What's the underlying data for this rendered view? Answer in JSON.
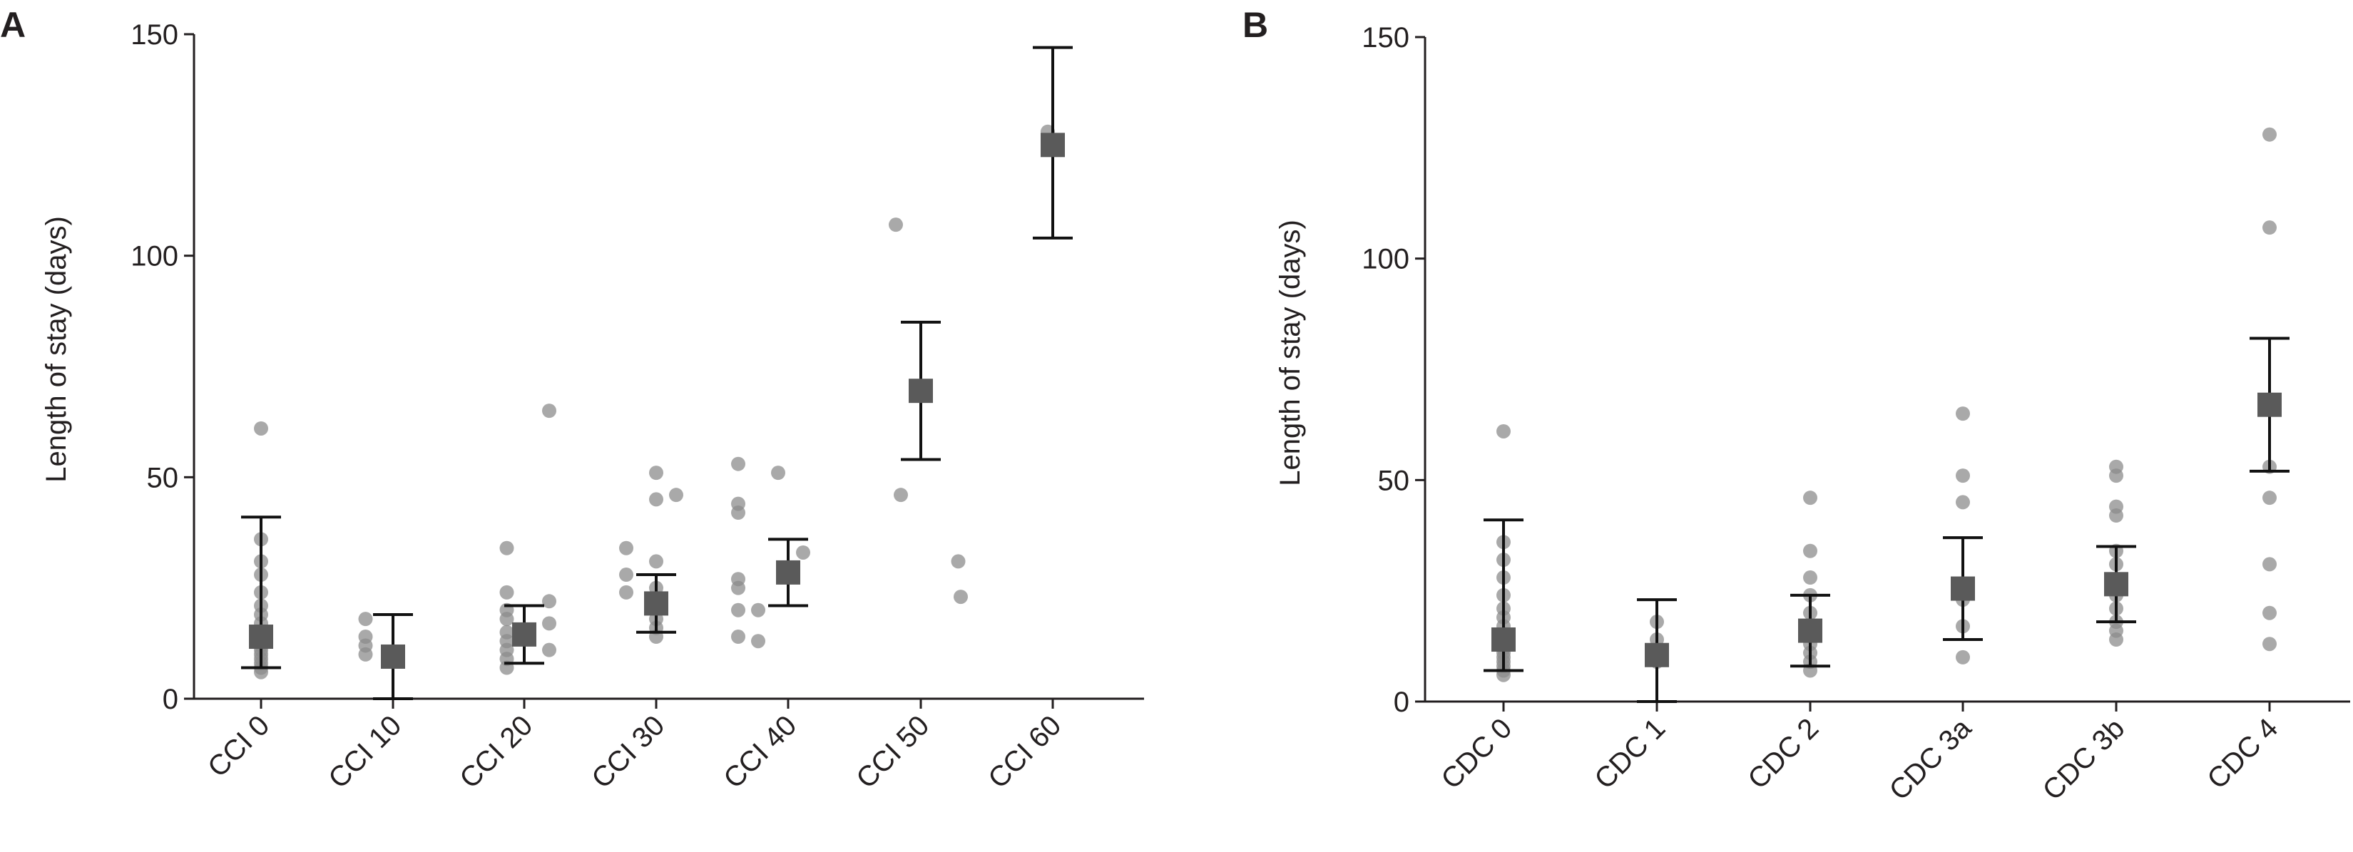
{
  "chart_data": [
    {
      "panel": "A",
      "type": "scatter",
      "title": "",
      "xlabel": "",
      "ylabel": "Length of stay (days)",
      "ylim": [
        0,
        150
      ],
      "yticks": [
        0,
        50,
        100,
        150
      ],
      "grid": false,
      "categories": [
        "CCI 0",
        "CCI 10",
        "CCI 20",
        "CCI 30",
        "CCI 40",
        "CCI 50",
        "CCI 60"
      ],
      "groups": [
        {
          "label": "CCI 0",
          "mean": 14,
          "ci": [
            7,
            41
          ],
          "points": [
            [
              0,
              61
            ],
            [
              0,
              36
            ],
            [
              0,
              31
            ],
            [
              0,
              28
            ],
            [
              0,
              24
            ],
            [
              0,
              21
            ],
            [
              0,
              19
            ],
            [
              0,
              17
            ],
            [
              0,
              15
            ],
            [
              0,
              14
            ],
            [
              0,
              13
            ],
            [
              0,
              12
            ],
            [
              0,
              11
            ],
            [
              0,
              10
            ],
            [
              0,
              9
            ],
            [
              0,
              8
            ],
            [
              0,
              7
            ],
            [
              0,
              6
            ]
          ]
        },
        {
          "label": "CCI 10",
          "mean": 9.5,
          "ci": [
            0,
            19
          ],
          "points": [
            [
              -0.55,
              18
            ],
            [
              -0.55,
              14
            ],
            [
              -0.55,
              12
            ],
            [
              -0.55,
              10
            ]
          ]
        },
        {
          "label": "CCI 20",
          "mean": 14.5,
          "ci": [
            8,
            21
          ],
          "points": [
            [
              -0.35,
              34
            ],
            [
              -0.35,
              24
            ],
            [
              -0.35,
              20
            ],
            [
              -0.35,
              18
            ],
            [
              -0.35,
              15
            ],
            [
              -0.35,
              13
            ],
            [
              -0.35,
              11
            ],
            [
              -0.35,
              9
            ],
            [
              -0.35,
              7
            ],
            [
              0.5,
              65
            ],
            [
              0.5,
              22
            ],
            [
              0.5,
              17
            ],
            [
              0.5,
              11
            ]
          ]
        },
        {
          "label": "CCI 30",
          "mean": 21.5,
          "ci": [
            15,
            28
          ],
          "points": [
            [
              -0.6,
              34
            ],
            [
              -0.6,
              28
            ],
            [
              -0.6,
              24
            ],
            [
              0,
              51
            ],
            [
              0,
              45
            ],
            [
              0,
              31
            ],
            [
              0,
              25
            ],
            [
              0,
              21
            ],
            [
              0,
              18
            ],
            [
              0,
              16
            ],
            [
              0,
              14
            ],
            [
              0.4,
              46
            ]
          ]
        },
        {
          "label": "CCI 40",
          "mean": 28.5,
          "ci": [
            21,
            36
          ],
          "points": [
            [
              -1,
              53
            ],
            [
              -1,
              44
            ],
            [
              -1,
              42
            ],
            [
              -1,
              27
            ],
            [
              -1,
              25
            ],
            [
              -1,
              20
            ],
            [
              -1,
              14
            ],
            [
              -0.6,
              20
            ],
            [
              -0.6,
              13
            ],
            [
              -0.2,
              51
            ],
            [
              0.3,
              33
            ]
          ]
        },
        {
          "label": "CCI 50",
          "mean": 69.5,
          "ci": [
            54,
            85
          ],
          "points": [
            [
              -0.5,
              107
            ],
            [
              -0.4,
              46
            ],
            [
              0.75,
              31
            ],
            [
              0.8,
              23
            ]
          ]
        },
        {
          "label": "CCI 60",
          "mean": 125,
          "ci": [
            104,
            147
          ],
          "points": [
            [
              -0.1,
              128
            ]
          ]
        }
      ]
    },
    {
      "panel": "B",
      "type": "scatter",
      "title": "",
      "xlabel": "",
      "ylabel": "Length of stay (days)",
      "ylim": [
        0,
        150
      ],
      "yticks": [
        0,
        50,
        100,
        150
      ],
      "grid": false,
      "categories": [
        "CDC 0",
        "CDC 1",
        "CDC 2",
        "CDC 3a",
        "CDC 3b",
        "CDC 4"
      ],
      "groups": [
        {
          "label": "CDC 0",
          "mean": 14,
          "ci": [
            7,
            41
          ],
          "points": [
            [
              0,
              61
            ],
            [
              0,
              36
            ],
            [
              0,
              32
            ],
            [
              0,
              28
            ],
            [
              0,
              24
            ],
            [
              0,
              21
            ],
            [
              0,
              19
            ],
            [
              0,
              17
            ],
            [
              0,
              15
            ],
            [
              0,
              13
            ],
            [
              0,
              12
            ],
            [
              0,
              11
            ],
            [
              0,
              10
            ],
            [
              0,
              9
            ],
            [
              0,
              8
            ],
            [
              0,
              7
            ],
            [
              0,
              6
            ]
          ]
        },
        {
          "label": "CDC 1",
          "mean": 10.5,
          "ci": [
            0,
            23
          ],
          "points": [
            [
              0,
              18
            ],
            [
              0,
              14
            ],
            [
              0,
              11
            ],
            [
              0,
              9
            ]
          ]
        },
        {
          "label": "CDC 2",
          "mean": 16,
          "ci": [
            8,
            24
          ],
          "points": [
            [
              0,
              46
            ],
            [
              0,
              34
            ],
            [
              0,
              28
            ],
            [
              0,
              24
            ],
            [
              0,
              20
            ],
            [
              0,
              17
            ],
            [
              0,
              15
            ],
            [
              0,
              13
            ],
            [
              0,
              11
            ],
            [
              0,
              9
            ],
            [
              0,
              7
            ]
          ]
        },
        {
          "label": "CDC 3a",
          "mean": 25.5,
          "ci": [
            14,
            37
          ],
          "points": [
            [
              0,
              65
            ],
            [
              0,
              51
            ],
            [
              0,
              45
            ],
            [
              0,
              23
            ],
            [
              0,
              17
            ],
            [
              0,
              10
            ]
          ]
        },
        {
          "label": "CDC 3b",
          "mean": 26.5,
          "ci": [
            18,
            35
          ],
          "points": [
            [
              0,
              53
            ],
            [
              0,
              51
            ],
            [
              0,
              44
            ],
            [
              0,
              42
            ],
            [
              0,
              34
            ],
            [
              0,
              31
            ],
            [
              0,
              27
            ],
            [
              0,
              24
            ],
            [
              0,
              21
            ],
            [
              0,
              18
            ],
            [
              0,
              16
            ],
            [
              0,
              14
            ]
          ]
        },
        {
          "label": "CDC 4",
          "mean": 67,
          "ci": [
            52,
            82
          ],
          "points": [
            [
              0,
              128
            ],
            [
              0,
              107
            ],
            [
              0,
              53
            ],
            [
              0,
              46
            ],
            [
              0,
              31
            ],
            [
              0,
              20
            ],
            [
              0,
              13
            ]
          ]
        }
      ]
    }
  ]
}
